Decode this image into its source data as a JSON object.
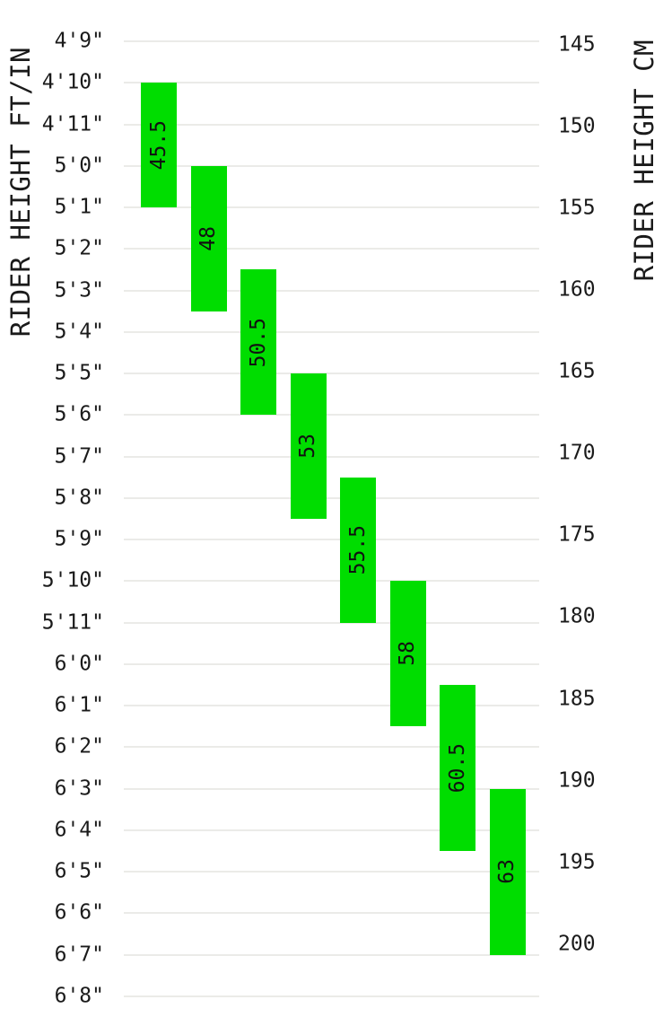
{
  "chart_data": {
    "type": "bar",
    "subtype": "floating-range-columns",
    "title": "",
    "legend": false,
    "grid": true,
    "left_axis": {
      "label": "RIDER HEIGHT FT/IN",
      "unit": "ft/in",
      "ticks": [
        "4'9\"",
        "4'10\"",
        "4'11\"",
        "5'0\"",
        "5'1\"",
        "5'2\"",
        "5'3\"",
        "5'4\"",
        "5'5\"",
        "5'6\"",
        "5'7\"",
        "5'8\"",
        "5'9\"",
        "5'10\"",
        "5'11\"",
        "6'0\"",
        "6'1\"",
        "6'2\"",
        "6'3\"",
        "6'4\"",
        "6'5\"",
        "6'6\"",
        "6'7\"",
        "6'8\""
      ]
    },
    "right_axis": {
      "label": "RIDER HEIGHT CM",
      "unit": "cm",
      "ticks": [
        145,
        150,
        155,
        160,
        165,
        170,
        175,
        180,
        185,
        190,
        195,
        200
      ]
    },
    "series": [
      {
        "frame_size": "45.5",
        "from_in": 58,
        "to_in": 61,
        "rider_height_in": [
          "4'10\"",
          "5'1\""
        ],
        "rider_height_cm": [
          147.5,
          155
        ]
      },
      {
        "frame_size": "48",
        "from_in": 60,
        "to_in": 63.5,
        "rider_height_in": [
          "5'0\"",
          "5'3.5\""
        ],
        "rider_height_cm": [
          152.5,
          161.5
        ]
      },
      {
        "frame_size": "50.5",
        "from_in": 62.5,
        "to_in": 66,
        "rider_height_in": [
          "5'2.5\"",
          "5'6\""
        ],
        "rider_height_cm": [
          159,
          167.5
        ]
      },
      {
        "frame_size": "53",
        "from_in": 65,
        "to_in": 68.5,
        "rider_height_in": [
          "5'5\"",
          "5'8.5\""
        ],
        "rider_height_cm": [
          165,
          174
        ]
      },
      {
        "frame_size": "55.5",
        "from_in": 67.5,
        "to_in": 71,
        "rider_height_in": [
          "5'7.5\"",
          "5'11\""
        ],
        "rider_height_cm": [
          171.5,
          180.5
        ]
      },
      {
        "frame_size": "58",
        "from_in": 70,
        "to_in": 73.5,
        "rider_height_in": [
          "5'10\"",
          "6'1.5\""
        ],
        "rider_height_cm": [
          178,
          186.5
        ]
      },
      {
        "frame_size": "60.5",
        "from_in": 72.5,
        "to_in": 76.5,
        "rider_height_in": [
          "6'0.5\"",
          "6'4.5\""
        ],
        "rider_height_cm": [
          184,
          194.5
        ]
      },
      {
        "frame_size": "63",
        "from_in": 75,
        "to_in": 79,
        "rider_height_in": [
          "6'3\"",
          "6'7\""
        ],
        "rider_height_cm": [
          190.5,
          200.5
        ]
      }
    ],
    "colors": {
      "bar": "#00dd00",
      "bar_label": "#111111",
      "grid": "#ebebe8",
      "text": "#1a1a1a",
      "background": "#ffffff"
    }
  }
}
